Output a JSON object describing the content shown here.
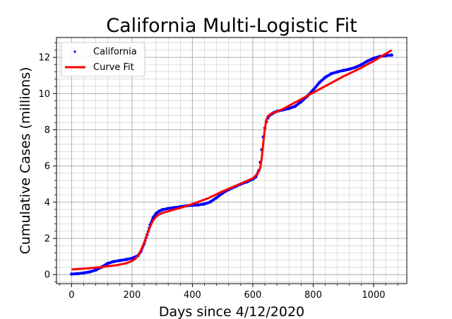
{
  "chart_data": {
    "type": "line",
    "title": "California Multi-Logistic Fit",
    "xlabel": "Days since 4/12/2020",
    "ylabel": "Cumulative Cases (millions)",
    "xlim": [
      -50,
      1110
    ],
    "ylim": [
      -0.5,
      13.1
    ],
    "xticks": [
      0,
      200,
      400,
      600,
      800,
      1000
    ],
    "yticks": [
      0,
      2,
      4,
      6,
      8,
      10,
      12
    ],
    "grid": true,
    "legend_position": "upper-left",
    "colors": {
      "data": "#0000ff",
      "fit": "#ff0000",
      "grid": "#b0b0b0"
    },
    "series": [
      {
        "name": "California",
        "style": "dots",
        "x": [
          0,
          20,
          40,
          60,
          80,
          100,
          120,
          140,
          160,
          180,
          200,
          220,
          230,
          240,
          250,
          260,
          270,
          280,
          290,
          300,
          320,
          340,
          360,
          380,
          400,
          420,
          440,
          460,
          480,
          500,
          520,
          540,
          560,
          580,
          600,
          610,
          620,
          625,
          630,
          635,
          640,
          645,
          650,
          655,
          660,
          665,
          670,
          680,
          700,
          720,
          740,
          760,
          780,
          800,
          820,
          840,
          860,
          880,
          900,
          920,
          940,
          960,
          980,
          1000,
          1020,
          1040,
          1060
        ],
        "y": [
          0.03,
          0.05,
          0.09,
          0.15,
          0.25,
          0.42,
          0.62,
          0.72,
          0.78,
          0.83,
          0.9,
          1.05,
          1.3,
          1.7,
          2.2,
          2.75,
          3.15,
          3.38,
          3.5,
          3.58,
          3.65,
          3.7,
          3.75,
          3.8,
          3.83,
          3.85,
          3.9,
          4.02,
          4.25,
          4.5,
          4.7,
          4.85,
          5.0,
          5.12,
          5.27,
          5.4,
          5.75,
          6.2,
          6.9,
          7.6,
          8.1,
          8.45,
          8.65,
          8.78,
          8.85,
          8.9,
          8.95,
          9.02,
          9.1,
          9.18,
          9.3,
          9.55,
          9.85,
          10.2,
          10.6,
          10.9,
          11.1,
          11.2,
          11.28,
          11.35,
          11.45,
          11.6,
          11.8,
          11.95,
          12.05,
          12.1,
          12.13
        ]
      },
      {
        "name": "Curve Fit",
        "style": "line",
        "x": [
          0,
          50,
          100,
          150,
          180,
          200,
          210,
          220,
          230,
          240,
          250,
          260,
          270,
          280,
          290,
          300,
          330,
          360,
          400,
          450,
          500,
          550,
          600,
          615,
          625,
          630,
          635,
          640,
          645,
          650,
          660,
          670,
          680,
          700,
          750,
          800,
          850,
          900,
          950,
          1000,
          1060
        ],
        "y": [
          0.28,
          0.34,
          0.42,
          0.52,
          0.62,
          0.75,
          0.86,
          1.05,
          1.35,
          1.75,
          2.2,
          2.65,
          3.0,
          3.2,
          3.32,
          3.4,
          3.55,
          3.68,
          3.9,
          4.2,
          4.6,
          4.95,
          5.32,
          5.55,
          5.9,
          6.5,
          7.3,
          8.05,
          8.55,
          8.75,
          8.88,
          8.95,
          9.0,
          9.15,
          9.6,
          10.05,
          10.5,
          10.95,
          11.35,
          11.8,
          12.4
        ]
      }
    ]
  }
}
